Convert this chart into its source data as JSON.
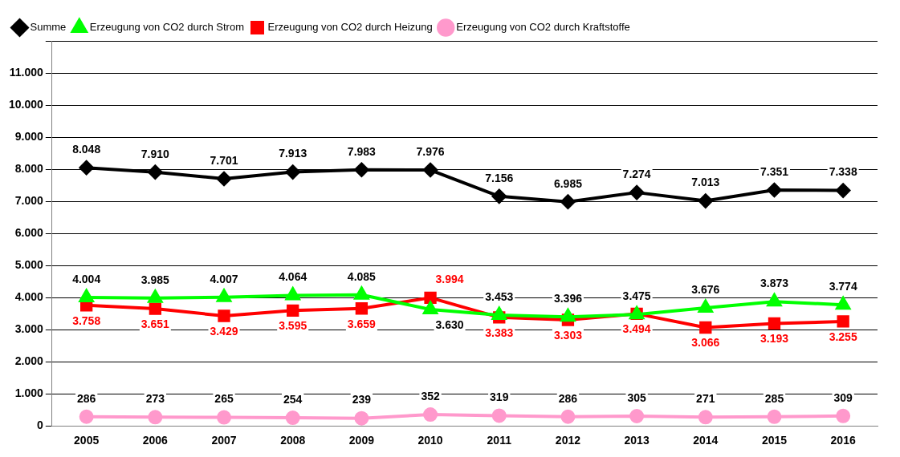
{
  "chart_data": {
    "type": "line",
    "categories": [
      "2005",
      "2006",
      "2007",
      "2008",
      "2009",
      "2010",
      "2011",
      "2012",
      "2013",
      "2014",
      "2015",
      "2016"
    ],
    "series": [
      {
        "name": "Summe",
        "color": "#000000",
        "marker": "diamond",
        "values": [
          8048,
          7910,
          7701,
          7913,
          7983,
          7976,
          7156,
          6985,
          7274,
          7013,
          7351,
          7338
        ],
        "value_labels": [
          "8.048",
          "7.910",
          "7.701",
          "7.913",
          "7.983",
          "7.976",
          "7.156",
          "6.985",
          "7.274",
          "7.013",
          "7.351",
          "7.338"
        ]
      },
      {
        "name": "Erzeugung von CO2 durch Strom",
        "color": "#00ff00",
        "marker": "triangle",
        "values": [
          4004,
          3985,
          4007,
          4064,
          4085,
          3630,
          3453,
          3396,
          3475,
          3676,
          3873,
          3774
        ],
        "value_labels": [
          "4.004",
          "3.985",
          "4.007",
          "4.064",
          "4.085",
          "3.630",
          "3.453",
          "3.396",
          "3.475",
          "3.676",
          "3.873",
          "3.774"
        ]
      },
      {
        "name": "Erzeugung von CO2 durch Heizung",
        "color": "#ff0000",
        "marker": "square",
        "values": [
          3758,
          3651,
          3429,
          3595,
          3659,
          3994,
          3383,
          3303,
          3494,
          3066,
          3193,
          3255
        ],
        "value_labels": [
          "3.758",
          "3.651",
          "3.429",
          "3.595",
          "3.659",
          "3.994",
          "3.383",
          "3.303",
          "3.494",
          "3.066",
          "3.193",
          "3.255"
        ]
      },
      {
        "name": "Erzeugung von CO2 durch Kraftstoffe",
        "color": "#ff99cc",
        "marker": "circle",
        "values": [
          286,
          273,
          265,
          254,
          239,
          352,
          319,
          286,
          305,
          271,
          285,
          309
        ],
        "value_labels": [
          "286",
          "273",
          "265",
          "254",
          "239",
          "352",
          "319",
          "286",
          "305",
          "271",
          "285",
          "309"
        ]
      }
    ],
    "ylim": [
      0,
      12000
    ],
    "yticks": [
      {
        "value": 0,
        "label": "0"
      },
      {
        "value": 1000,
        "label": "1.000"
      },
      {
        "value": 2000,
        "label": "2.000"
      },
      {
        "value": 3000,
        "label": "3.000"
      },
      {
        "value": 4000,
        "label": "4.000"
      },
      {
        "value": 5000,
        "label": "5.000"
      },
      {
        "value": 6000,
        "label": "6.000"
      },
      {
        "value": 7000,
        "label": "7.000"
      },
      {
        "value": 8000,
        "label": "8.000"
      },
      {
        "value": 9000,
        "label": "9.000"
      },
      {
        "value": 10000,
        "label": "10.000"
      },
      {
        "value": 11000,
        "label": "11.000"
      },
      {
        "value": 12000,
        "label": null
      }
    ],
    "grid": "y",
    "legend": "top left",
    "line_style": "solid"
  }
}
